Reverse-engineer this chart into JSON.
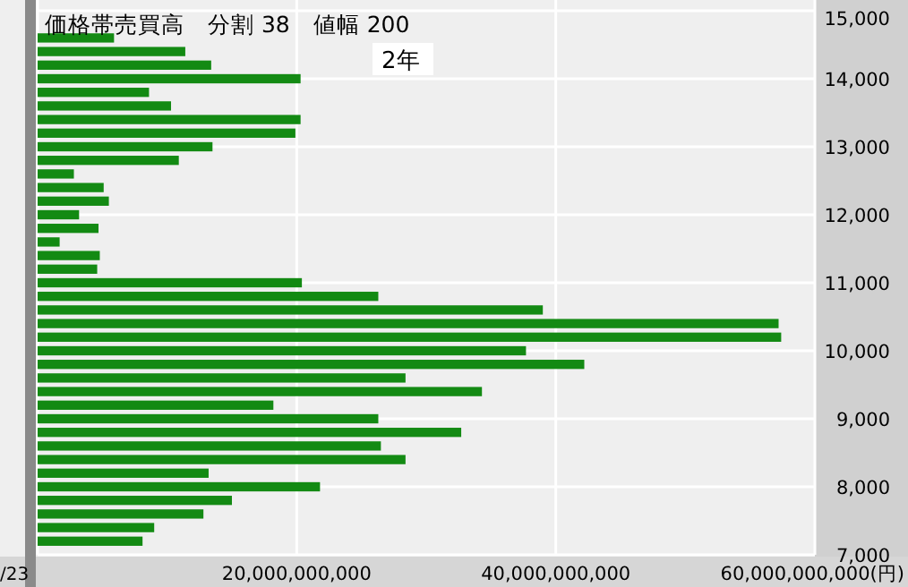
{
  "chart_data": {
    "type": "bar",
    "orientation": "horizontal",
    "title": "価格帯売買高　分割 38　値幅 200",
    "annotations": [
      "2年",
      "/23"
    ],
    "x": [
      14600,
      14400,
      14200,
      14000,
      13800,
      13600,
      13400,
      13200,
      13000,
      12800,
      12600,
      12400,
      12200,
      12000,
      11800,
      11600,
      11400,
      11200,
      11000,
      10800,
      10600,
      10400,
      10200,
      10000,
      9800,
      9600,
      9400,
      9200,
      9000,
      8800,
      8600,
      8400,
      8200,
      8000,
      7800,
      7600,
      7400,
      7200
    ],
    "values": [
      5900000000,
      11400000000,
      13400000000,
      20300000000,
      8600000000,
      10300000000,
      20300000000,
      19900000000,
      13500000000,
      10900000000,
      2800000000,
      5100000000,
      5500000000,
      3200000000,
      4700000000,
      1700000000,
      4800000000,
      4600000000,
      20400000000,
      26300000000,
      39000000000,
      57200000000,
      57400000000,
      37700000000,
      42200000000,
      28400000000,
      34300000000,
      18200000000,
      26300000000,
      32700000000,
      26500000000,
      28400000000,
      13200000000,
      21800000000,
      15000000000,
      12800000000,
      9000000000,
      8100000000
    ],
    "color": "#138a13",
    "xlim": [
      0,
      60000000000
    ],
    "xticks": [
      {
        "value": 0,
        "label": null
      },
      {
        "value": 20000000000,
        "label": "20,000,000,000"
      },
      {
        "value": 40000000000,
        "label": "40,000,000,000"
      },
      {
        "value": 60000000000,
        "label": "60,000,000,000(円)"
      }
    ],
    "ylim": [
      7000,
      15000
    ],
    "yticks": [
      {
        "value": 7000,
        "label": "7,000"
      },
      {
        "value": 8000,
        "label": "8,000"
      },
      {
        "value": 9000,
        "label": "9,000"
      },
      {
        "value": 10000,
        "label": "10,000"
      },
      {
        "value": 11000,
        "label": "11,000"
      },
      {
        "value": 12000,
        "label": "12,000"
      },
      {
        "value": 13000,
        "label": "13,000"
      },
      {
        "value": 14000,
        "label": "14,000"
      },
      {
        "value": 15000,
        "label": "15,000"
      }
    ],
    "grid": true
  }
}
